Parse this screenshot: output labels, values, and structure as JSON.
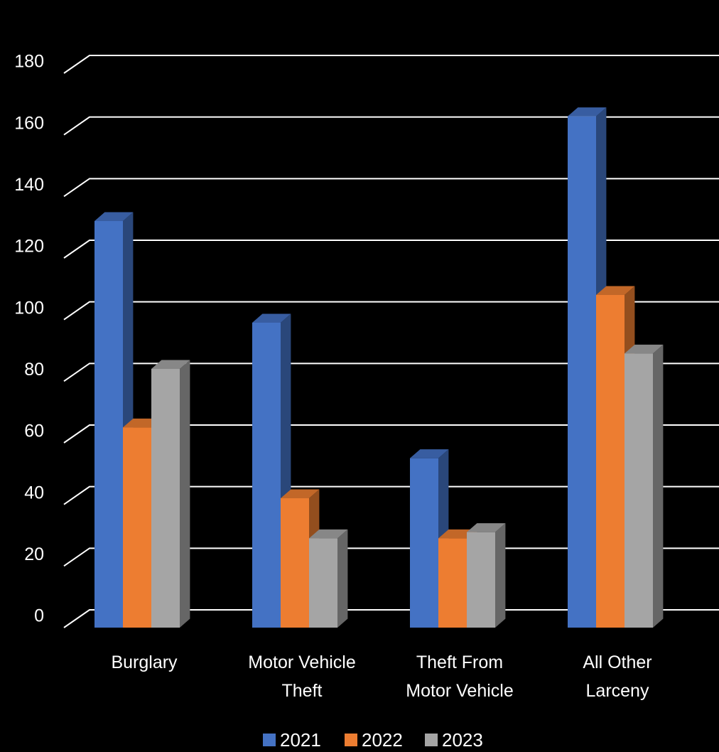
{
  "chart_data": {
    "type": "bar",
    "categories": [
      [
        "Burglary"
      ],
      [
        "Motor Vehicle",
        "Theft"
      ],
      [
        "Theft From",
        "Motor Vehicle"
      ],
      [
        "All Other",
        "Larceny"
      ]
    ],
    "series": [
      {
        "name": "2021",
        "values": [
          132,
          99,
          55,
          166
        ]
      },
      {
        "name": "2022",
        "values": [
          65,
          42,
          29,
          108
        ]
      },
      {
        "name": "2023",
        "values": [
          84,
          29,
          31,
          89
        ]
      }
    ],
    "ylim": [
      0,
      180
    ],
    "ytick_step": 20,
    "grid": true,
    "legend_position": "bottom",
    "colors": {
      "2021": "#4472C4",
      "2022": "#ED7D31",
      "2023": "#A5A5A5",
      "background": "#000000",
      "gridline": "#ffffff",
      "text": "#ffffff"
    },
    "title": "",
    "xlabel": "",
    "ylabel": ""
  }
}
